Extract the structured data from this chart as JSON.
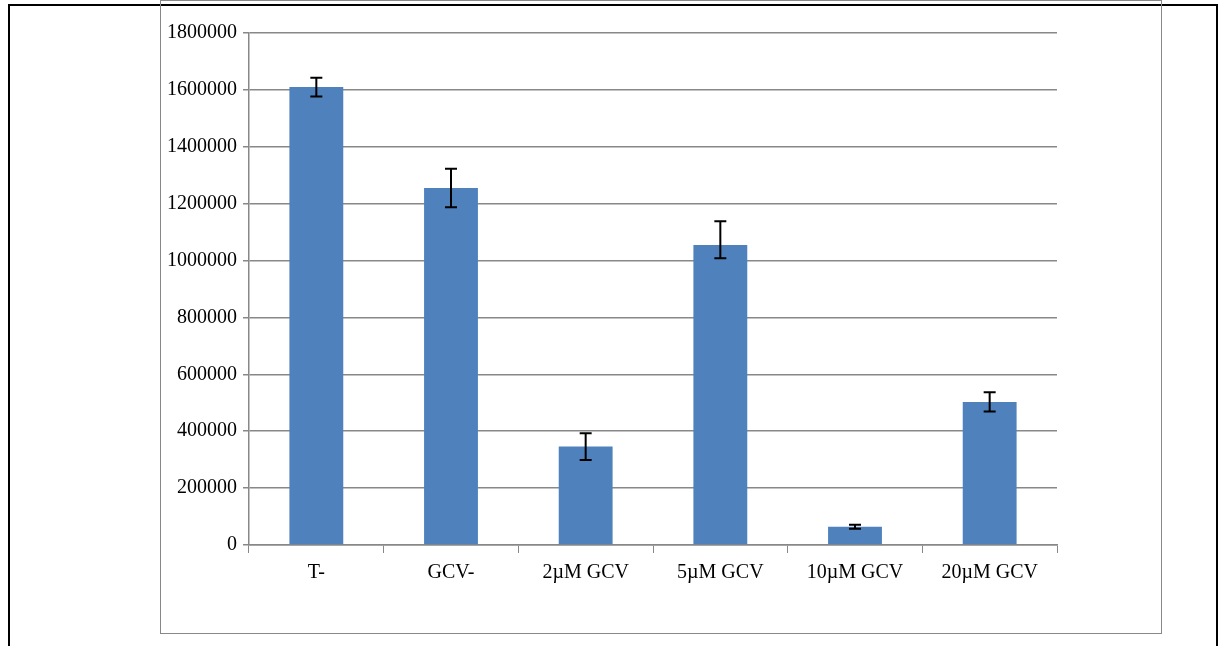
{
  "chart_data": {
    "type": "bar",
    "categories": [
      "T-",
      "GCV-",
      "2µM GCV",
      "5µM GCV",
      "10µM GCV",
      "20µM GCV"
    ],
    "values": [
      1610000,
      1255000,
      346000,
      1055000,
      64000,
      503000
    ],
    "errors": [
      33000,
      68000,
      47000,
      [
        1008000,
        1138000
      ],
      7000,
      34000
    ],
    "color": "#4f81bd",
    "ylim": [
      0,
      1800000
    ],
    "yticks": [
      0,
      200000,
      400000,
      600000,
      800000,
      1000000,
      1200000,
      1400000,
      1600000,
      1800000
    ],
    "grid": "y"
  }
}
